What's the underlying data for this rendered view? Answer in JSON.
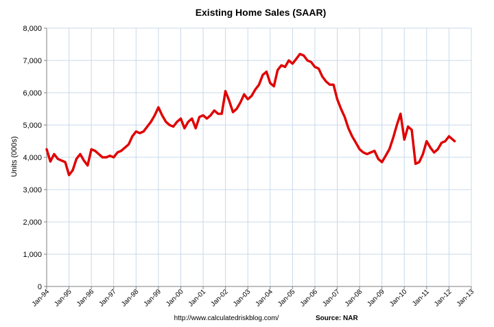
{
  "chart_data": {
    "type": "line",
    "title": "Existing Home Sales (SAAR)",
    "xlabel": "",
    "ylabel": "Units (000s)",
    "ylim": [
      0,
      8000
    ],
    "y_ticks": [
      "0",
      "1,000",
      "2,000",
      "3,000",
      "4,000",
      "5,000",
      "6,000",
      "7,000",
      "8,000"
    ],
    "y_tick_values": [
      0,
      1000,
      2000,
      3000,
      4000,
      5000,
      6000,
      7000,
      8000
    ],
    "x_ticks": [
      "Jan-94",
      "Jan-95",
      "Jan-96",
      "Jan-97",
      "Jan-98",
      "Jan-99",
      "Jan-00",
      "Jan-01",
      "Jan-02",
      "Jan-03",
      "Jan-04",
      "Jan-05",
      "Jan-06",
      "Jan-07",
      "Jan-08",
      "Jan-09",
      "Jan-10",
      "Jan-11",
      "Jan-12",
      "Jan-13"
    ],
    "grid": true,
    "legend": "none",
    "line_color": "#e00000",
    "plot_background": "#ffffff",
    "grid_color": "#c8d8ea",
    "series": [
      {
        "x": [
          "Jan-94",
          "Mar-94",
          "May-94",
          "Jul-94",
          "Sep-94",
          "Nov-94",
          "Jan-95",
          "Mar-95",
          "May-95",
          "Jul-95",
          "Sep-95",
          "Nov-95",
          "Jan-96",
          "Mar-96",
          "May-96",
          "Jul-96",
          "Sep-96",
          "Nov-96",
          "Jan-97",
          "Mar-97",
          "May-97",
          "Jul-97",
          "Sep-97",
          "Nov-97",
          "Jan-98",
          "Mar-98",
          "May-98",
          "Jul-98",
          "Sep-98",
          "Nov-98",
          "Jan-99",
          "Mar-99",
          "May-99",
          "Jul-99",
          "Sep-99",
          "Nov-99",
          "Jan-00",
          "Mar-00",
          "May-00",
          "Jul-00",
          "Sep-00",
          "Nov-00",
          "Jan-01",
          "Mar-01",
          "May-01",
          "Jul-01",
          "Sep-01",
          "Nov-01",
          "Jan-02",
          "Mar-02",
          "May-02",
          "Jul-02",
          "Sep-02",
          "Nov-02",
          "Jan-03",
          "Mar-03",
          "May-03",
          "Jul-03",
          "Sep-03",
          "Nov-03",
          "Jan-04",
          "Mar-04",
          "May-04",
          "Jul-04",
          "Sep-04",
          "Nov-04",
          "Jan-05",
          "Mar-05",
          "May-05",
          "Jul-05",
          "Sep-05",
          "Nov-05",
          "Jan-06",
          "Mar-06",
          "May-06",
          "Jul-06",
          "Sep-06",
          "Nov-06",
          "Jan-07",
          "Mar-07",
          "May-07",
          "Jul-07",
          "Sep-07",
          "Nov-07",
          "Jan-08",
          "Mar-08",
          "May-08",
          "Jul-08",
          "Sep-08",
          "Nov-08",
          "Jan-09",
          "Mar-09",
          "May-09",
          "Jul-09",
          "Sep-09",
          "Nov-09",
          "Jan-10",
          "Mar-10",
          "May-10",
          "Jul-10",
          "Sep-10",
          "Nov-10",
          "Jan-11",
          "Mar-11",
          "May-11",
          "Jul-11",
          "Sep-11",
          "Nov-11",
          "Jan-12",
          "Mar-12",
          "Apr-12"
        ],
        "values": [
          4250,
          3870,
          4100,
          3950,
          3900,
          3850,
          3450,
          3600,
          3950,
          4100,
          3900,
          3750,
          4250,
          4200,
          4100,
          4000,
          4000,
          4050,
          4000,
          4150,
          4200,
          4300,
          4400,
          4650,
          4800,
          4750,
          4800,
          4950,
          5100,
          5300,
          5550,
          5300,
          5100,
          5000,
          4950,
          5100,
          5200,
          4900,
          5100,
          5200,
          4900,
          5250,
          5300,
          5200,
          5300,
          5450,
          5350,
          5350,
          6050,
          5750,
          5400,
          5500,
          5700,
          5950,
          5800,
          5900,
          6100,
          6250,
          6550,
          6650,
          6300,
          6200,
          6700,
          6850,
          6800,
          7000,
          6900,
          7050,
          7200,
          7150,
          7000,
          6950,
          6800,
          6750,
          6500,
          6350,
          6250,
          6250,
          5800,
          5500,
          5250,
          4900,
          4650,
          4450,
          4250,
          4150,
          4100,
          4150,
          4200,
          3950,
          3850,
          4050,
          4250,
          4600,
          5000,
          5350,
          4550,
          4950,
          4850,
          3800,
          3850,
          4100,
          4500,
          4300,
          4150,
          4250,
          4450,
          4500,
          4650,
          4550,
          4500
        ]
      }
    ]
  },
  "footer": {
    "url": "http://www.calculatedriskblog.com/",
    "source": "Source: NAR"
  }
}
